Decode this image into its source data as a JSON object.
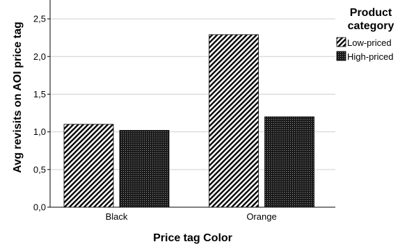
{
  "chart_data": {
    "type": "bar",
    "categories": [
      "Black",
      "Orange"
    ],
    "series": [
      {
        "name": "Low-priced",
        "values": [
          1.1,
          2.29
        ],
        "pattern": "diagonal-hatch"
      },
      {
        "name": "High-priced",
        "values": [
          1.02,
          1.2
        ],
        "pattern": "crosshatch-dense"
      }
    ],
    "ylim": [
      0,
      2.75
    ],
    "yticks": [
      0,
      0.5,
      1.0,
      1.5,
      2.0,
      2.5
    ],
    "ytick_labels": [
      "0,0",
      "0,5",
      "1,0",
      "1,5",
      "2,0",
      "2,5"
    ],
    "xlabel": "Price tag Color",
    "ylabel": "Avg revisits on AOI price tag",
    "legend": {
      "title_line1": "Product",
      "title_line2": "category",
      "placement": "right"
    },
    "grid": true
  }
}
